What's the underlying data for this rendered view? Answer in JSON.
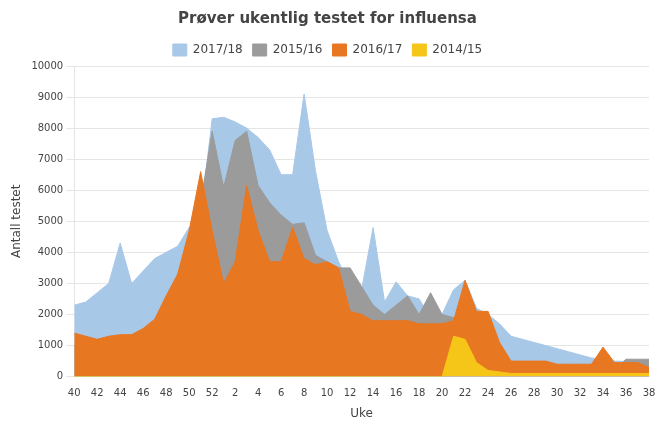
{
  "chart_data": {
    "type": "area",
    "title": "Prøver ukentlig testet for influensa",
    "x_label": "Uke",
    "y_label": "Antall testet",
    "categories": [
      "40",
      null,
      "42",
      null,
      "44",
      null,
      "46",
      null,
      "48",
      null,
      "50",
      null,
      "52",
      null,
      "2",
      null,
      "4",
      null,
      "6",
      null,
      "8",
      null,
      "10",
      null,
      "12",
      null,
      "14",
      null,
      "16",
      null,
      "18",
      null,
      "20",
      null,
      "22",
      null,
      "24",
      null,
      "26",
      null,
      "28",
      null,
      "30",
      null,
      "32",
      null,
      "34",
      null,
      "36",
      null,
      "38"
    ],
    "series": [
      {
        "name": "2017/18",
        "color": "#A8C8E8",
        "values": [
          2300,
          2400,
          2700,
          3000,
          4300,
          3000,
          3400,
          3800,
          4000,
          4200,
          4800,
          5200,
          8300,
          8350,
          8200,
          8000,
          7700,
          7300,
          6500,
          6500,
          9100,
          6600,
          4700,
          3700,
          2900,
          2800,
          4800,
          2400,
          3050,
          2600,
          2500,
          1900,
          2000,
          2800,
          3100,
          2200,
          2000,
          1700,
          1300,
          1200,
          1100,
          1000,
          900,
          800,
          700,
          600,
          550,
          500,
          490,
          480,
          470
        ]
      },
      {
        "name": "2015/16",
        "color": "#9B9B9B",
        "values": [
          1000,
          1050,
          1200,
          1250,
          1300,
          1350,
          1500,
          1700,
          2100,
          2900,
          3700,
          5600,
          7900,
          6100,
          7600,
          7900,
          6150,
          5600,
          5200,
          4900,
          4950,
          3900,
          3700,
          3500,
          3500,
          2900,
          2300,
          2000,
          2300,
          2600,
          2000,
          2700,
          2000,
          1900,
          2000,
          1900,
          1800,
          200,
          150,
          200,
          200,
          200,
          200,
          150,
          200,
          200,
          200,
          200,
          560,
          560,
          560
        ]
      },
      {
        "name": "2016/17",
        "color": "#E87722",
        "values": [
          1400,
          1300,
          1200,
          1300,
          1350,
          1350,
          1550,
          1850,
          2600,
          3300,
          4700,
          6600,
          4700,
          3000,
          3700,
          6150,
          4700,
          3700,
          3700,
          4800,
          3800,
          3600,
          3700,
          3500,
          2100,
          2000,
          1800,
          1800,
          1800,
          1800,
          1700,
          1700,
          1700,
          1800,
          3100,
          2100,
          2100,
          1100,
          500,
          500,
          500,
          500,
          400,
          400,
          400,
          400,
          950,
          450,
          450,
          450,
          300
        ]
      },
      {
        "name": "2014/15",
        "color": "#F5C518",
        "values": [
          0,
          0,
          0,
          0,
          0,
          0,
          0,
          0,
          0,
          0,
          0,
          0,
          0,
          0,
          0,
          0,
          0,
          0,
          0,
          0,
          0,
          0,
          0,
          0,
          0,
          0,
          0,
          0,
          0,
          0,
          0,
          0,
          0,
          1300,
          1200,
          450,
          200,
          150,
          100,
          100,
          100,
          100,
          100,
          100,
          100,
          100,
          100,
          100,
          100,
          100,
          100
        ]
      }
    ],
    "ylim": [
      0,
      10000
    ],
    "yticks": [
      0,
      1000,
      2000,
      3000,
      4000,
      5000,
      6000,
      7000,
      8000,
      9000,
      10000
    ],
    "grid": true,
    "legend": "top"
  }
}
